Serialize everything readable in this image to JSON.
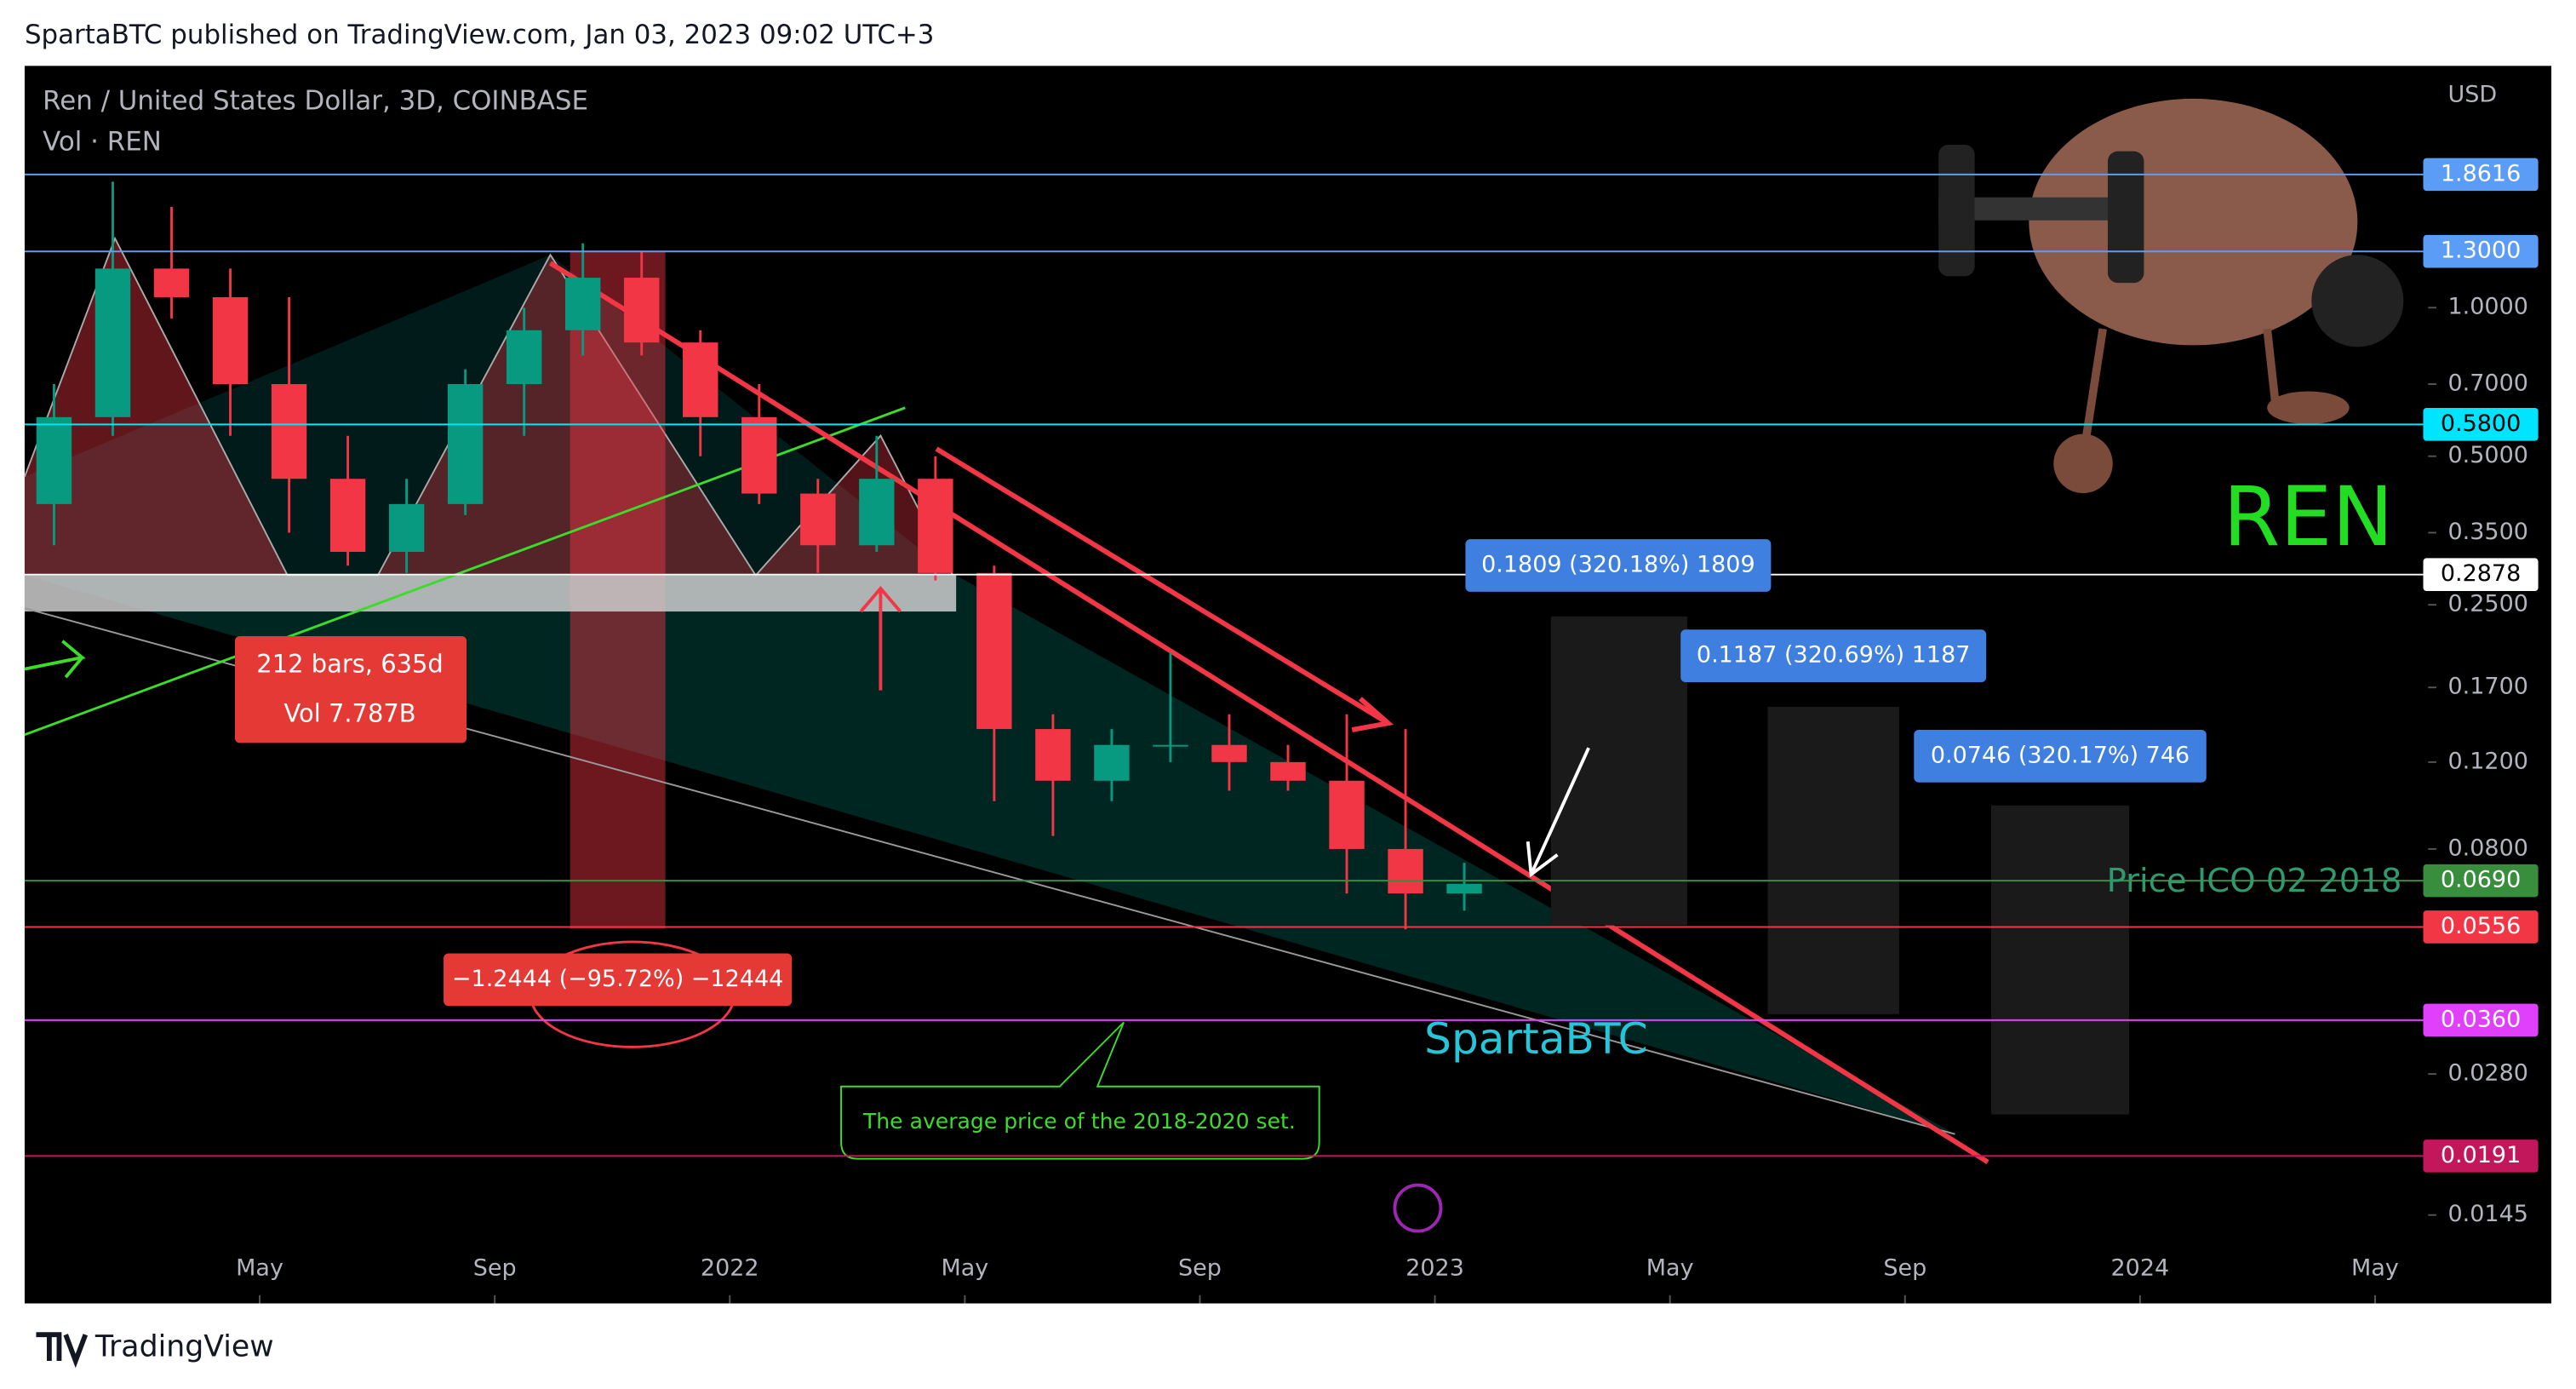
{
  "header": "SpartaBTC published on TradingView.com, Jan 03, 2023 09:02 UTC+3",
  "footer": "TradingView",
  "chart_data": {
    "type": "candlestick",
    "title": "Ren / United States Dollar, 3D, COINBASE",
    "subtitle": "Vol · REN",
    "y_axis_label": "USD",
    "log_scale": true,
    "up_color": "#089981",
    "down_color": "#f23645",
    "x": [
      "2021-01",
      "2021-02",
      "2021-03",
      "2021-04",
      "2021-05",
      "2021-06",
      "2021-07",
      "2021-08",
      "2021-09",
      "2021-10",
      "2021-11",
      "2021-12",
      "2022-01",
      "2022-02",
      "2022-03",
      "2022-04",
      "2022-05",
      "2022-06",
      "2022-07",
      "2022-08",
      "2022-09",
      "2022-10",
      "2022-11",
      "2022-12",
      "2023-01"
    ],
    "open": [
      0.4,
      0.6,
      1.2,
      1.05,
      0.7,
      0.45,
      0.32,
      0.4,
      0.7,
      0.9,
      1.15,
      0.85,
      0.6,
      0.42,
      0.33,
      0.45,
      0.29,
      0.14,
      0.11,
      0.13,
      0.13,
      0.12,
      0.11,
      0.08,
      0.065
    ],
    "high": [
      0.7,
      1.8,
      1.6,
      1.2,
      1.05,
      0.55,
      0.45,
      0.75,
      1.0,
      1.35,
      1.3,
      0.9,
      0.7,
      0.45,
      0.55,
      0.5,
      0.3,
      0.15,
      0.14,
      0.2,
      0.15,
      0.13,
      0.15,
      0.14,
      0.075
    ],
    "low": [
      0.33,
      0.55,
      0.95,
      0.55,
      0.35,
      0.3,
      0.29,
      0.38,
      0.55,
      0.8,
      0.8,
      0.5,
      0.4,
      0.29,
      0.32,
      0.28,
      0.1,
      0.085,
      0.1,
      0.12,
      0.105,
      0.105,
      0.065,
      0.055,
      0.06
    ],
    "close": [
      0.6,
      1.2,
      1.05,
      0.7,
      0.45,
      0.32,
      0.4,
      0.7,
      0.9,
      1.15,
      0.85,
      0.6,
      0.42,
      0.33,
      0.45,
      0.29,
      0.14,
      0.11,
      0.13,
      0.13,
      0.12,
      0.11,
      0.08,
      0.065,
      0.068
    ],
    "xlim": [
      "2021-01",
      "2024-08"
    ],
    "xticks": [
      {
        "value": "2021-05",
        "label": "May"
      },
      {
        "value": "2021-09",
        "label": "Sep"
      },
      {
        "value": "2022-01",
        "label": "2022"
      },
      {
        "value": "2022-05",
        "label": "May"
      },
      {
        "value": "2022-09",
        "label": "Sep"
      },
      {
        "value": "2023-01",
        "label": "2023"
      },
      {
        "value": "2023-05",
        "label": "May"
      },
      {
        "value": "2023-09",
        "label": "Sep"
      },
      {
        "value": "2024-01",
        "label": "2024"
      },
      {
        "value": "2024-05",
        "label": "May"
      }
    ],
    "ylim": [
      0.0096,
      3.09
    ],
    "yticks": [
      {
        "value": 1,
        "label": "1.0000"
      },
      {
        "value": 0.7,
        "label": "0.7000"
      },
      {
        "value": 0.5,
        "label": "0.5000"
      },
      {
        "value": 0.35,
        "label": "0.3500"
      },
      {
        "value": 0.25,
        "label": "0.2500"
      },
      {
        "value": 0.17,
        "label": "0.1700"
      },
      {
        "value": 0.12,
        "label": "0.1200"
      },
      {
        "value": 0.08,
        "label": "0.0800"
      },
      {
        "value": 0.028,
        "label": "0.0280"
      },
      {
        "value": 0.0145,
        "label": "0.0145"
      }
    ],
    "levels": [
      {
        "value": 1.8616,
        "label": "1.8616",
        "color": "#5b9cf6"
      },
      {
        "value": 1.3,
        "label": "1.3000",
        "color": "#5b9cf6"
      },
      {
        "value": 0.58,
        "label": "0.5800",
        "color": "#00e5ff"
      },
      {
        "value": 0.2878,
        "label": "0.2878",
        "color": "#ffffff"
      },
      {
        "value": 0.069,
        "label": "0.0690",
        "color": "#388e3c"
      },
      {
        "value": 0.0556,
        "label": "0.0556",
        "color": "#f23645"
      },
      {
        "value": 0.036,
        "label": "0.0360",
        "color": "#e040fb"
      },
      {
        "value": 0.0191,
        "label": "0.0191",
        "color": "#c2185b"
      }
    ],
    "annotations": {
      "bars": "212 bars, 635d",
      "vol": "Vol 7.787B",
      "drop": "−1.2444 (−95.72%) −12444",
      "target1": "0.1809 (320.18%) 1809",
      "target2": "0.1187 (320.69%) 1187",
      "target3": "0.0746 (320.17%) 746",
      "ico": "Price ICO 02 2018",
      "author": "SpartaBTC",
      "ticker": "REN",
      "note": "The average price of the 2018-2020 set."
    }
  }
}
